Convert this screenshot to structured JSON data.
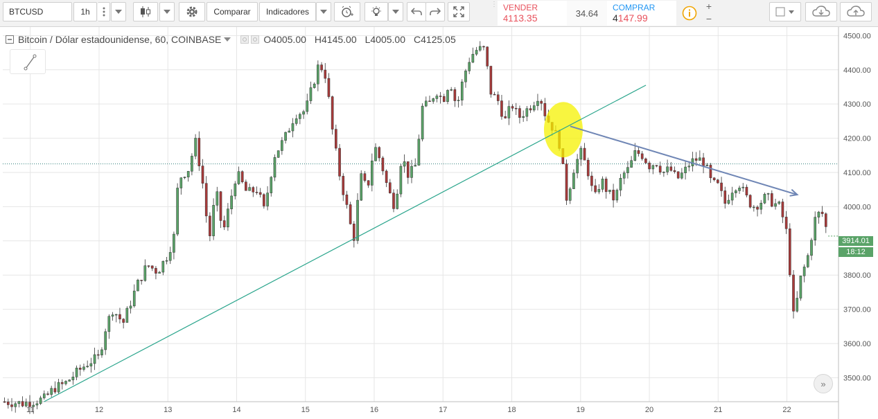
{
  "toolbar": {
    "symbol": "BTCUSD",
    "interval": "1h",
    "compare_label": "Comparar",
    "indicators_label": "Indicadores",
    "sell": {
      "label": "VENDER",
      "price_small": "41",
      "price_big": "13.35",
      "color": "#e8505b"
    },
    "spread": "34.64",
    "buy": {
      "label": "COMPRAR",
      "price_small": "4",
      "price_big": "147.99",
      "color": "#2196f3"
    },
    "icons": [
      "candlestick-icon",
      "gear-icon",
      "alarm-clock-icon",
      "lightbulb-icon",
      "undo-icon",
      "redo-icon",
      "fullscreen-icon",
      "info-icon",
      "plus-icon",
      "minus-icon",
      "square-icon",
      "cloud-download-icon",
      "cloud-upload-icon"
    ]
  },
  "legend": {
    "title": "Bitcoin / Dólar estadounidense, 60, COINBASE",
    "open": "O4005.00",
    "high": "H4145.00",
    "low": "L4005.00",
    "close": "C4125.05"
  },
  "price_tags": {
    "last": "3914.01",
    "countdown": "18:12"
  },
  "colors": {
    "up": "#5aa368",
    "down": "#a83a3a",
    "trendline": "#2aa58c",
    "arrow": "#6f86b5",
    "highlight": "#f5f200",
    "grid": "#e6e6e6",
    "price_line": "#2f7f7a"
  },
  "chart_data": {
    "type": "candlestick",
    "title": "Bitcoin / Dólar estadounidense, 60, COINBASE",
    "x_ticks": [
      "11",
      "12",
      "13",
      "14",
      "15",
      "16",
      "17",
      "18",
      "19",
      "20",
      "21",
      "22"
    ],
    "x_range": [
      10.6,
      22.75
    ],
    "y_ticks": [
      "4500.00",
      "4400.00",
      "4300.00",
      "4200.00",
      "4100.00",
      "4000.00",
      "3900.00",
      "3800.00",
      "3700.00",
      "3600.00",
      "3500.00"
    ],
    "y_range": [
      3430,
      4525
    ],
    "grid": true,
    "reference_line": 4125,
    "last_price": 3914.01,
    "series": [
      [
        10.6,
        3430
      ],
      [
        10.9,
        3425
      ],
      [
        11.2,
        3438
      ],
      [
        11.35,
        3470
      ],
      [
        11.5,
        3482
      ],
      [
        11.7,
        3520
      ],
      [
        11.85,
        3545
      ],
      [
        12.0,
        3560
      ],
      [
        12.1,
        3650
      ],
      [
        12.2,
        3700
      ],
      [
        12.35,
        3660
      ],
      [
        12.55,
        3770
      ],
      [
        12.7,
        3830
      ],
      [
        12.85,
        3810
      ],
      [
        13.0,
        3860
      ],
      [
        13.1,
        3920
      ],
      [
        13.15,
        4080
      ],
      [
        13.3,
        4110
      ],
      [
        13.4,
        4190
      ],
      [
        13.5,
        4080
      ],
      [
        13.6,
        3900
      ],
      [
        13.7,
        4050
      ],
      [
        13.8,
        3920
      ],
      [
        13.9,
        4010
      ],
      [
        14.0,
        4100
      ],
      [
        14.15,
        4040
      ],
      [
        14.3,
        4050
      ],
      [
        14.4,
        3990
      ],
      [
        14.55,
        4150
      ],
      [
        14.7,
        4200
      ],
      [
        14.85,
        4270
      ],
      [
        15.0,
        4280
      ],
      [
        15.1,
        4350
      ],
      [
        15.2,
        4420
      ],
      [
        15.3,
        4380
      ],
      [
        15.4,
        4210
      ],
      [
        15.5,
        4090
      ],
      [
        15.6,
        4000
      ],
      [
        15.7,
        3900
      ],
      [
        15.8,
        4090
      ],
      [
        15.9,
        4050
      ],
      [
        16.0,
        4180
      ],
      [
        16.1,
        4130
      ],
      [
        16.2,
        4050
      ],
      [
        16.3,
        4000
      ],
      [
        16.4,
        4150
      ],
      [
        16.5,
        4090
      ],
      [
        16.6,
        4120
      ],
      [
        16.7,
        4290
      ],
      [
        16.8,
        4300
      ],
      [
        16.9,
        4340
      ],
      [
        17.0,
        4310
      ],
      [
        17.1,
        4370
      ],
      [
        17.2,
        4290
      ],
      [
        17.3,
        4380
      ],
      [
        17.4,
        4440
      ],
      [
        17.5,
        4460
      ],
      [
        17.6,
        4460
      ],
      [
        17.7,
        4330
      ],
      [
        17.8,
        4310
      ],
      [
        17.9,
        4250
      ],
      [
        18.0,
        4300
      ],
      [
        18.1,
        4260
      ],
      [
        18.2,
        4280
      ],
      [
        18.3,
        4300
      ],
      [
        18.4,
        4330
      ],
      [
        18.5,
        4260
      ],
      [
        18.6,
        4230
      ],
      [
        18.7,
        4180
      ],
      [
        18.8,
        4020
      ],
      [
        18.9,
        4110
      ],
      [
        19.0,
        4160
      ],
      [
        19.1,
        4110
      ],
      [
        19.2,
        4020
      ],
      [
        19.3,
        4080
      ],
      [
        19.4,
        4040
      ],
      [
        19.5,
        4020
      ],
      [
        19.6,
        4090
      ],
      [
        19.7,
        4110
      ],
      [
        19.8,
        4160
      ],
      [
        19.9,
        4150
      ],
      [
        20.0,
        4120
      ],
      [
        20.1,
        4130
      ],
      [
        20.2,
        4100
      ],
      [
        20.3,
        4110
      ],
      [
        20.4,
        4080
      ],
      [
        20.5,
        4100
      ],
      [
        20.6,
        4130
      ],
      [
        20.7,
        4140
      ],
      [
        20.8,
        4130
      ],
      [
        20.9,
        4070
      ],
      [
        21.0,
        4060
      ],
      [
        21.1,
        4010
      ],
      [
        21.2,
        4050
      ],
      [
        21.3,
        4070
      ],
      [
        21.4,
        4030
      ],
      [
        21.5,
        4000
      ],
      [
        21.6,
        4010
      ],
      [
        21.7,
        4030
      ],
      [
        21.8,
        4010
      ],
      [
        21.9,
        4000
      ],
      [
        22.0,
        3920
      ],
      [
        22.1,
        3670
      ],
      [
        22.2,
        3790
      ],
      [
        22.3,
        3850
      ],
      [
        22.4,
        3960
      ],
      [
        22.5,
        3990
      ],
      [
        22.6,
        3914.01
      ]
    ],
    "annotations": {
      "trendline": [
        [
          11.2,
          3430
        ],
        [
          19.95,
          4355
        ]
      ],
      "arrow": [
        [
          18.85,
          4235
        ],
        [
          22.15,
          4035
        ]
      ],
      "highlight": [
        18.75,
        4225
      ]
    }
  }
}
